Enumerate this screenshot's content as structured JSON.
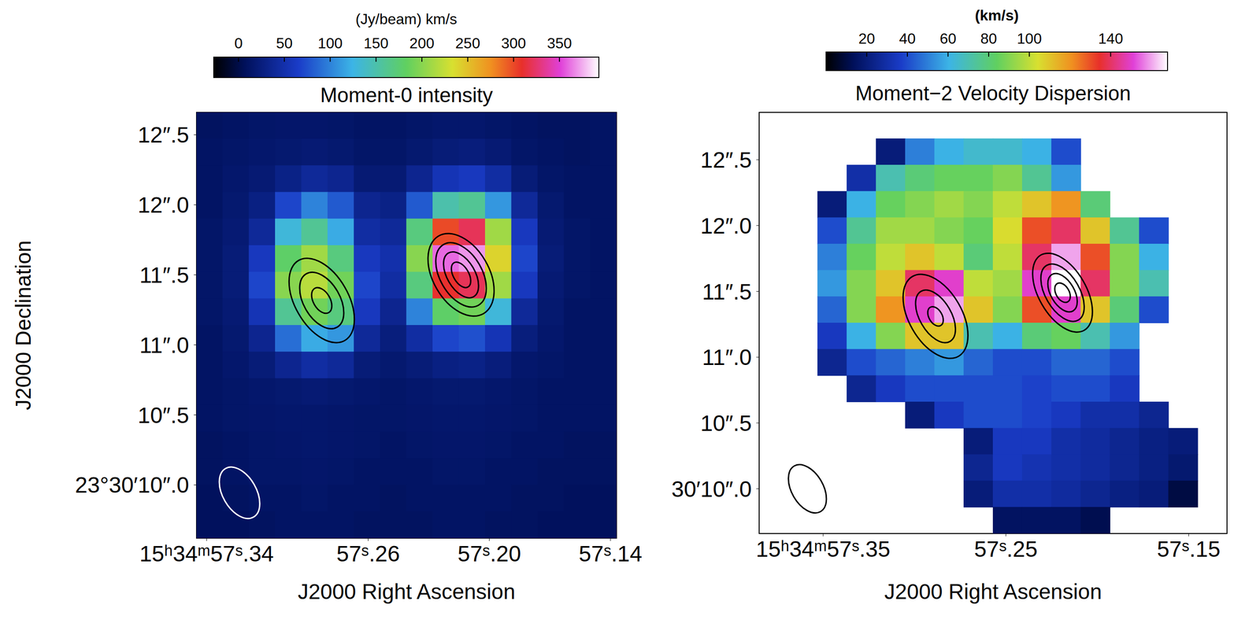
{
  "chart_data": [
    {
      "type": "heatmap",
      "title": "Moment-0 intensity",
      "xlabel": "J2000 Right Ascension",
      "ylabel": "J2000 Declination",
      "xlim": [
        57.345,
        57.137
      ],
      "ylim": [
        9.62,
        12.66
      ],
      "xticks": [
        {
          "value": 57.34,
          "label": "15ʰ34ᵐ57ˢ.34"
        },
        {
          "value": 57.26,
          "label": "57ˢ.26"
        },
        {
          "value": 57.2,
          "label": "57ˢ.20"
        },
        {
          "value": 57.14,
          "label": "57ˢ.14"
        }
      ],
      "yticks": [
        {
          "value": 10,
          "label": "23°30′10″.0"
        },
        {
          "value": 10.5,
          "label": "10″.5"
        },
        {
          "value": 11,
          "label": "11″.0"
        },
        {
          "value": 11.5,
          "label": "11″.5"
        },
        {
          "value": 12,
          "label": "12″.0"
        },
        {
          "value": 12.5,
          "label": "12″.5"
        }
      ],
      "x": [
        57.3385,
        57.3255,
        57.3125,
        57.2995,
        57.2865,
        57.2735,
        57.2605,
        57.2475,
        57.2345,
        57.2215,
        57.2085,
        57.1955,
        57.1825,
        57.1695,
        57.1565,
        57.1435
      ],
      "y": [
        12.565,
        12.375,
        12.185,
        11.995,
        11.805,
        11.615,
        11.425,
        11.235,
        11.045,
        10.855,
        10.665,
        10.475,
        10.285,
        10.095,
        9.905,
        9.715
      ],
      "z": [
        [
          10,
          12,
          14,
          15,
          15,
          14,
          12,
          12,
          14,
          16,
          16,
          14,
          12,
          10,
          10,
          12
        ],
        [
          12,
          14,
          16,
          18,
          20,
          18,
          14,
          14,
          18,
          22,
          24,
          20,
          14,
          12,
          10,
          12
        ],
        [
          12,
          16,
          20,
          30,
          40,
          35,
          20,
          20,
          35,
          55,
          60,
          45,
          22,
          14,
          12,
          12
        ],
        [
          12,
          18,
          28,
          70,
          100,
          80,
          35,
          30,
          80,
          150,
          160,
          110,
          40,
          18,
          12,
          12
        ],
        [
          14,
          20,
          40,
          130,
          160,
          120,
          45,
          40,
          170,
          300,
          320,
          210,
          60,
          20,
          14,
          12
        ],
        [
          14,
          22,
          60,
          180,
          210,
          170,
          60,
          50,
          200,
          360,
          370,
          240,
          70,
          22,
          14,
          12
        ],
        [
          14,
          22,
          70,
          200,
          220,
          190,
          70,
          45,
          170,
          310,
          320,
          210,
          60,
          20,
          14,
          12
        ],
        [
          14,
          20,
          55,
          160,
          190,
          170,
          60,
          35,
          100,
          180,
          190,
          130,
          40,
          18,
          12,
          12
        ],
        [
          12,
          18,
          35,
          90,
          120,
          110,
          40,
          25,
          45,
          70,
          75,
          55,
          25,
          16,
          12,
          12
        ],
        [
          12,
          16,
          22,
          35,
          45,
          40,
          22,
          18,
          22,
          28,
          30,
          24,
          16,
          14,
          12,
          12
        ],
        [
          12,
          14,
          16,
          18,
          20,
          18,
          16,
          14,
          16,
          18,
          18,
          16,
          14,
          12,
          12,
          12
        ],
        [
          12,
          14,
          15,
          16,
          16,
          15,
          14,
          14,
          15,
          16,
          16,
          15,
          14,
          12,
          12,
          12
        ],
        [
          10,
          12,
          14,
          15,
          16,
          15,
          14,
          12,
          14,
          15,
          15,
          14,
          12,
          12,
          10,
          10
        ],
        [
          10,
          12,
          14,
          14,
          15,
          14,
          12,
          12,
          12,
          14,
          14,
          12,
          12,
          10,
          10,
          10
        ],
        [
          8,
          10,
          12,
          12,
          14,
          12,
          12,
          10,
          12,
          12,
          12,
          12,
          10,
          10,
          8,
          8
        ],
        [
          8,
          8,
          10,
          12,
          12,
          12,
          10,
          10,
          10,
          12,
          12,
          10,
          10,
          8,
          8,
          8
        ]
      ],
      "colorbar": {
        "label": "(Jy/beam) km/s",
        "lim": [
          -27,
          393
        ],
        "ticks": [
          0,
          50,
          100,
          150,
          200,
          250,
          300,
          350
        ]
      },
      "contours": [
        {
          "x": 57.283,
          "y": 11.317,
          "semi_axes": [
            [
              0.33,
              0.19
            ],
            [
              0.22,
              0.13
            ],
            [
              0.1,
              0.06
            ]
          ],
          "pa": 30
        },
        {
          "x": 57.214,
          "y": 11.5,
          "semi_axes": [
            [
              0.32,
              0.2
            ],
            [
              0.25,
              0.15
            ],
            [
              0.18,
              0.1
            ],
            [
              0.1,
              0.055
            ]
          ],
          "pa": 30
        }
      ],
      "beam": {
        "x": 57.3237,
        "y": 9.944,
        "semi_axes": [
          0.2,
          0.12
        ],
        "pa": 30,
        "color": "#ffffff"
      }
    },
    {
      "type": "heatmap",
      "title": "Moment−2 Velocity Dispersion",
      "xlabel": "J2000 Right Ascension",
      "xlim": [
        57.385,
        57.129
      ],
      "ylim": [
        9.66,
        12.86
      ],
      "xticks": [
        {
          "value": 57.35,
          "label": "15ʰ34ᵐ57ˢ.35"
        },
        {
          "value": 57.25,
          "label": "57ˢ.25"
        },
        {
          "value": 57.15,
          "label": "57ˢ.15"
        }
      ],
      "yticks": [
        {
          "value": 10,
          "label": "30′10″.0"
        },
        {
          "value": 10.5,
          "label": "10″.5"
        },
        {
          "value": 11,
          "label": "11″.0"
        },
        {
          "value": 11.5,
          "label": "11″.5"
        },
        {
          "value": 12,
          "label": "12″.0"
        },
        {
          "value": 12.5,
          "label": "12″.5"
        }
      ],
      "x": [
        57.377,
        57.361,
        57.345,
        57.329,
        57.313,
        57.297,
        57.281,
        57.265,
        57.249,
        57.233,
        57.217,
        57.201,
        57.185,
        57.169,
        57.153,
        57.137
      ],
      "y": [
        12.76,
        12.56,
        12.36,
        12.16,
        11.96,
        11.76,
        11.56,
        11.36,
        11.16,
        10.96,
        10.76,
        10.56,
        10.36,
        10.16,
        9.96,
        9.76
      ],
      "z": [
        [
          null,
          null,
          null,
          null,
          null,
          null,
          null,
          null,
          null,
          null,
          null,
          null,
          null,
          null,
          null,
          null
        ],
        [
          null,
          null,
          null,
          null,
          20,
          50,
          60,
          65,
          65,
          60,
          40,
          null,
          null,
          null,
          null,
          null
        ],
        [
          null,
          null,
          null,
          30,
          70,
          80,
          85,
          85,
          90,
          75,
          55,
          null,
          null,
          null,
          null,
          null
        ],
        [
          null,
          null,
          20,
          60,
          85,
          90,
          95,
          90,
          100,
          110,
          120,
          80,
          null,
          null,
          null,
          null
        ],
        [
          null,
          null,
          40,
          75,
          95,
          95,
          90,
          85,
          105,
          130,
          140,
          110,
          75,
          40,
          null,
          null
        ],
        [
          null,
          null,
          50,
          85,
          100,
          110,
          100,
          80,
          100,
          140,
          160,
          130,
          90,
          60,
          null,
          null
        ],
        [
          null,
          null,
          55,
          90,
          110,
          140,
          150,
          100,
          95,
          150,
          168,
          140,
          90,
          70,
          null,
          null
        ],
        [
          null,
          null,
          45,
          90,
          120,
          150,
          160,
          110,
          90,
          130,
          150,
          110,
          80,
          40,
          null,
          null
        ],
        [
          null,
          null,
          35,
          60,
          90,
          110,
          110,
          70,
          60,
          80,
          85,
          70,
          55,
          null,
          null,
          null
        ],
        [
          null,
          null,
          25,
          40,
          45,
          50,
          55,
          45,
          40,
          40,
          45,
          45,
          40,
          null,
          null,
          null
        ],
        [
          null,
          null,
          null,
          25,
          35,
          40,
          40,
          40,
          40,
          38,
          40,
          40,
          35,
          null,
          null,
          null
        ],
        [
          null,
          null,
          null,
          null,
          null,
          20,
          35,
          40,
          40,
          38,
          35,
          30,
          30,
          25,
          null,
          null
        ],
        [
          null,
          null,
          null,
          null,
          null,
          null,
          null,
          20,
          35,
          35,
          30,
          28,
          25,
          22,
          20,
          null
        ],
        [
          null,
          null,
          null,
          null,
          null,
          null,
          null,
          25,
          35,
          32,
          30,
          28,
          25,
          22,
          18,
          null
        ],
        [
          null,
          null,
          null,
          null,
          null,
          null,
          null,
          20,
          30,
          30,
          28,
          25,
          22,
          20,
          10,
          null
        ],
        [
          null,
          null,
          null,
          null,
          null,
          null,
          null,
          null,
          15,
          15,
          15,
          12,
          null,
          null,
          null,
          null
        ]
      ],
      "colorbar": {
        "label": "(km/s)",
        "lim": [
          0,
          168
        ],
        "ticks": [
          20,
          40,
          60,
          80,
          100,
          140
        ]
      },
      "contours": [
        {
          "x": 57.2885,
          "y": 11.31,
          "semi_axes": [
            [
              0.35,
              0.2
            ],
            [
              0.22,
              0.12
            ],
            [
              0.08,
              0.05
            ]
          ],
          "pa": 30
        },
        {
          "x": 57.219,
          "y": 11.49,
          "semi_axes": [
            [
              0.33,
              0.18
            ],
            [
              0.24,
              0.13
            ],
            [
              0.16,
              0.09
            ],
            [
              0.08,
              0.05
            ]
          ],
          "pa": 30
        }
      ],
      "beam": {
        "x": 57.3586,
        "y": 10.0,
        "semi_axes": [
          0.2,
          0.12
        ],
        "pa": 30,
        "color": "#000000"
      }
    }
  ]
}
